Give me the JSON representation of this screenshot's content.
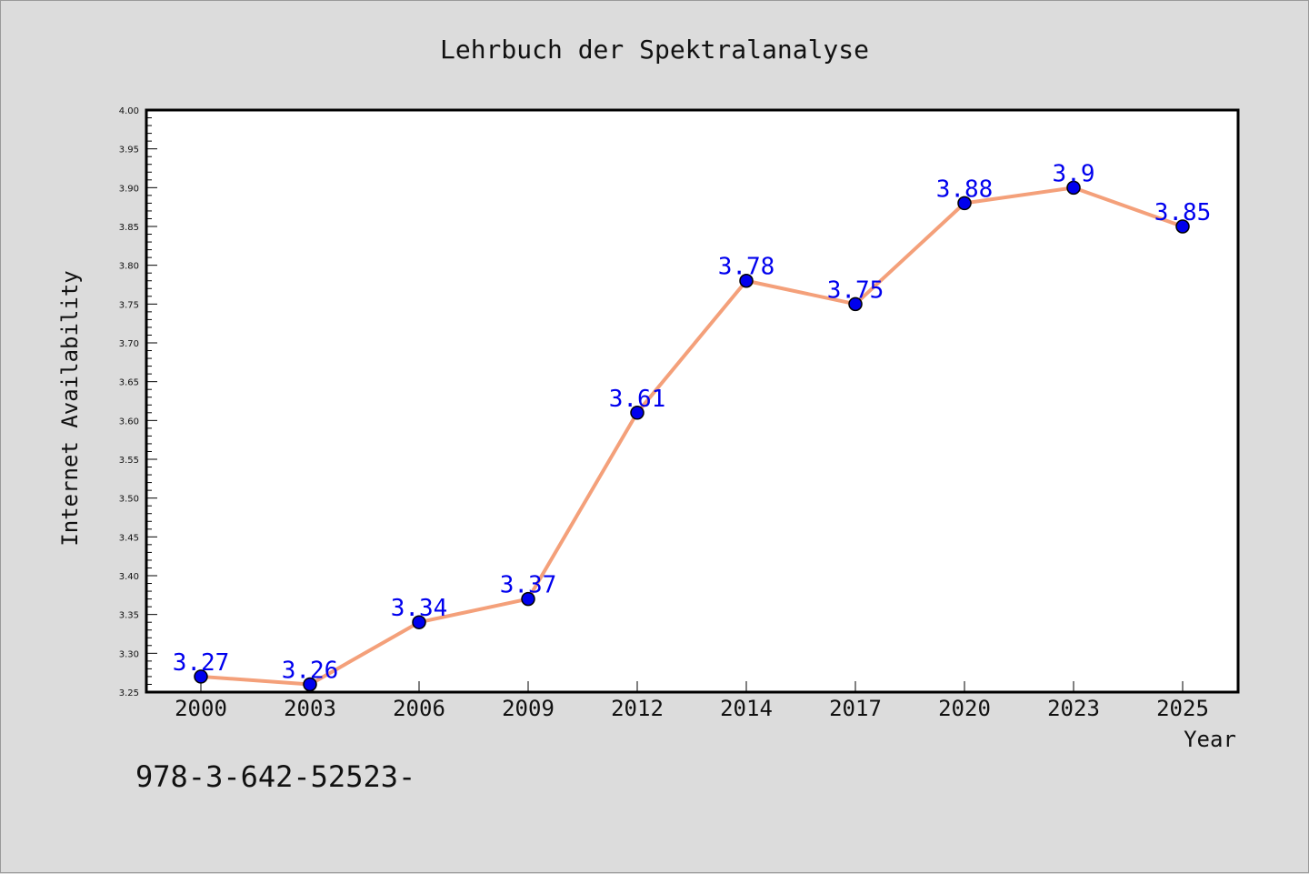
{
  "chart_data": {
    "type": "line",
    "title": "Lehrbuch der Spektralanalyse",
    "xlabel": "Year",
    "ylabel": "Internet Availability",
    "categories": [
      "2000",
      "2003",
      "2006",
      "2009",
      "2012",
      "2014",
      "2017",
      "2020",
      "2023",
      "2025"
    ],
    "series": [
      {
        "values": [
          3.27,
          3.26,
          3.34,
          3.37,
          3.61,
          3.78,
          3.75,
          3.88,
          3.9,
          3.85
        ],
        "data_labels": [
          "3.27",
          "3.26",
          "3.34",
          "3.37",
          "3.61",
          "3.78",
          "3.75",
          "3.88",
          "3.9",
          "3.85"
        ]
      }
    ],
    "ylim": [
      3.25,
      4.0
    ],
    "yticks": [
      "3.25",
      "3.30",
      "3.35",
      "3.40",
      "3.45",
      "3.50",
      "3.55",
      "3.60",
      "3.65",
      "3.70",
      "3.75",
      "3.80",
      "3.85",
      "3.90",
      "3.95",
      "4.00"
    ],
    "grid": false,
    "colors": {
      "line": "#f4a07a",
      "marker": "#0000ee",
      "label": "#0000ee"
    }
  },
  "footer": {
    "text": "978-3-642-52523-"
  }
}
